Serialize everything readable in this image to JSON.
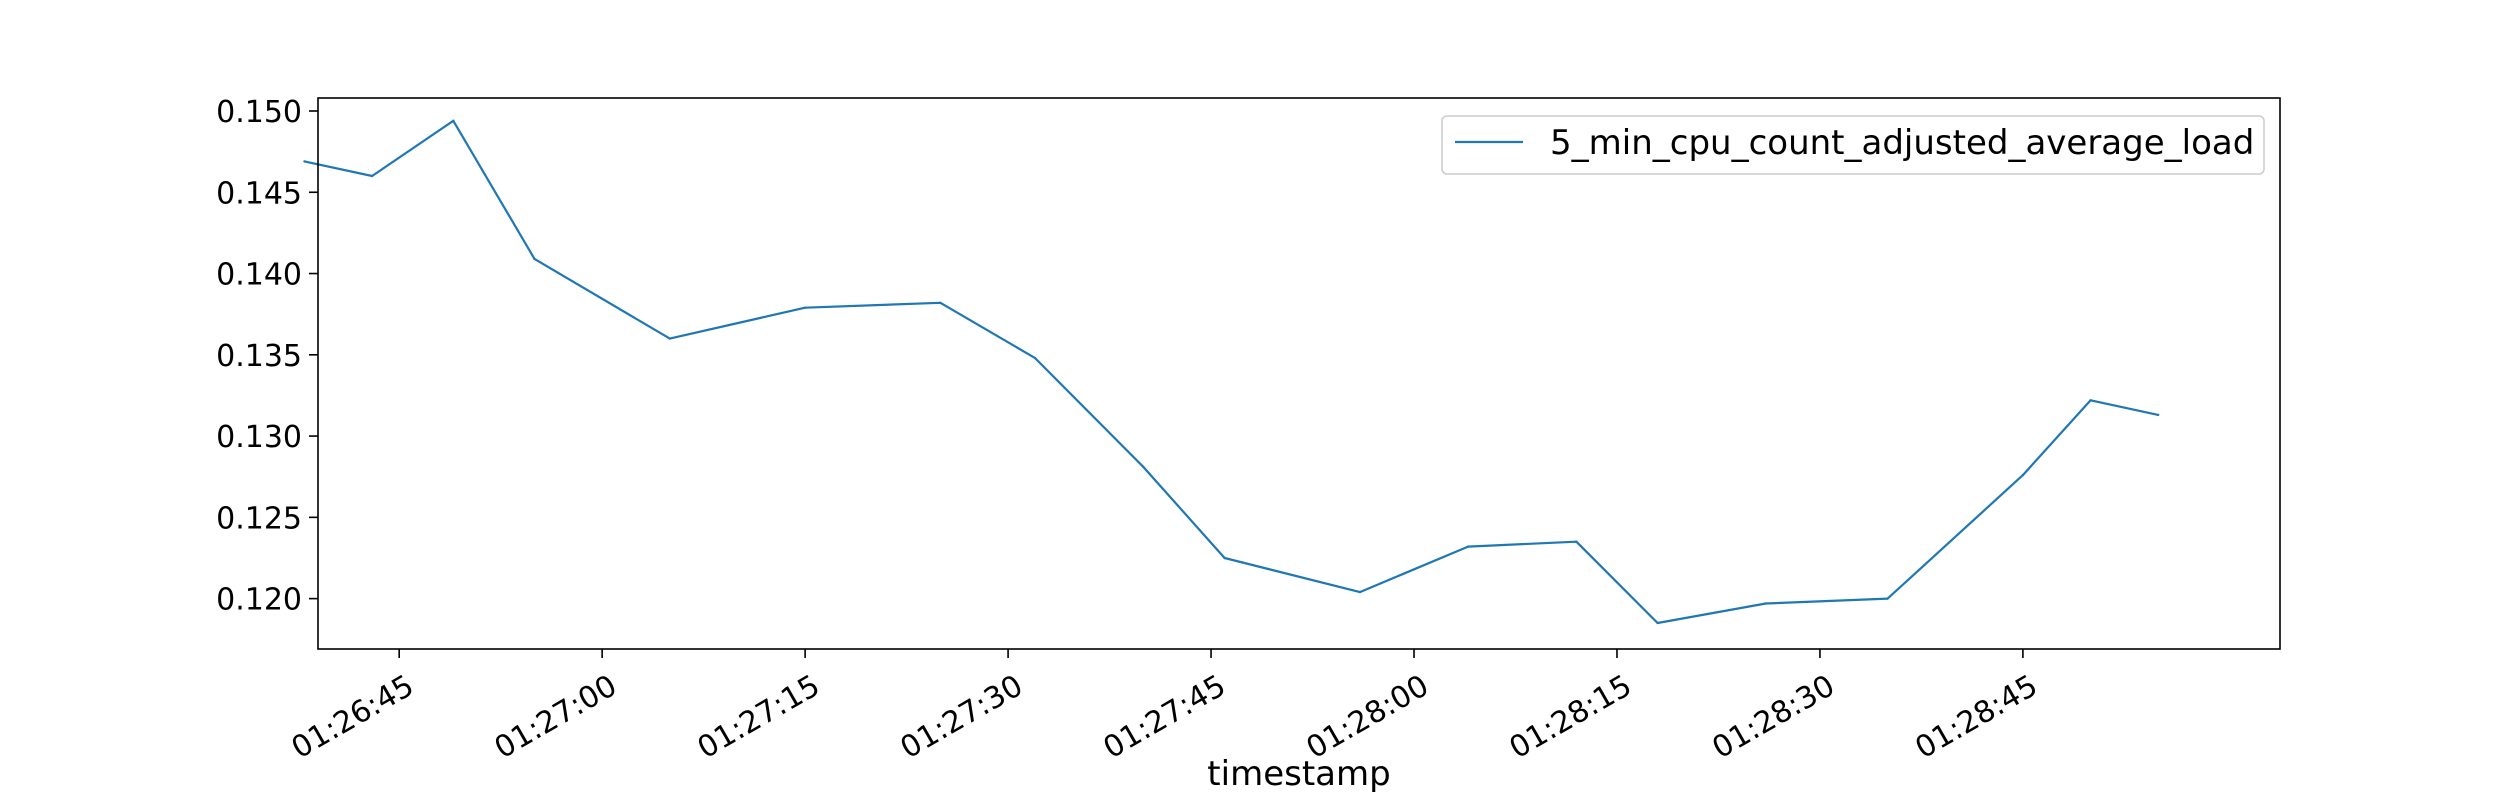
{
  "chart_data": {
    "type": "line",
    "title": "",
    "xlabel": "timestamp",
    "ylabel": "",
    "x": [
      "01:26:38",
      "01:26:43",
      "01:26:49",
      "01:26:55",
      "01:27:05",
      "01:27:15",
      "01:27:25",
      "01:27:32",
      "01:27:40",
      "01:27:46",
      "01:27:56",
      "01:28:04",
      "01:28:12",
      "01:28:18",
      "01:28:26",
      "01:28:35",
      "01:28:45",
      "01:28:50",
      "01:28:55"
    ],
    "series": [
      {
        "name": "5_min_cpu_count_adjusted_average_load",
        "color": "#1f77b4",
        "values": [
          0.1469,
          0.146,
          0.1494,
          0.1409,
          0.136,
          0.1379,
          0.1382,
          0.1348,
          0.1281,
          0.1225,
          0.1204,
          0.1232,
          0.1235,
          0.1185,
          0.1197,
          0.12,
          0.1276,
          0.1322,
          0.1313
        ]
      }
    ],
    "xticks": [
      "01:26:45",
      "01:27:00",
      "01:27:15",
      "01:27:30",
      "01:27:45",
      "01:28:00",
      "01:28:15",
      "01:28:30",
      "01:28:45"
    ],
    "yticks": [
      "0.120",
      "0.125",
      "0.130",
      "0.135",
      "0.140",
      "0.145",
      "0.150"
    ],
    "xlim": [
      "01:26:39",
      "01:29:04"
    ],
    "ylim": [
      0.1169,
      0.1508
    ],
    "grid": false,
    "legend_position": "top-right"
  }
}
